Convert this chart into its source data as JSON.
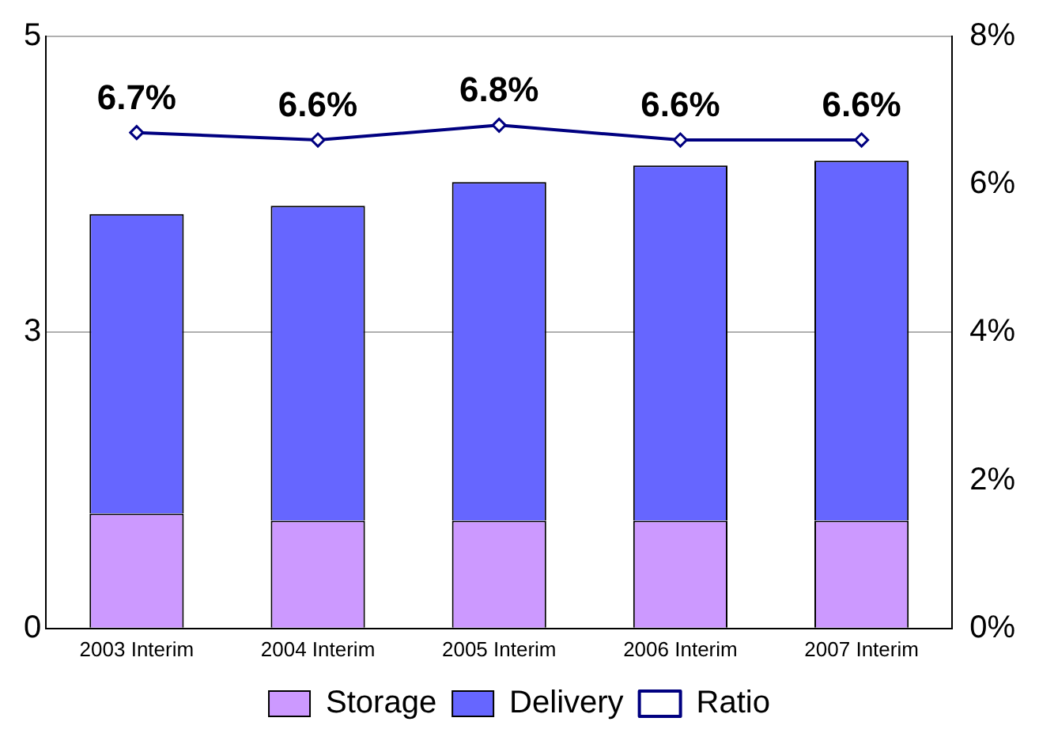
{
  "chart_data": {
    "type": "bar",
    "stacked": true,
    "categories": [
      "2003 Interim",
      "2004 Interim",
      "2005 Interim",
      "2006 Interim",
      "2007 Interim"
    ],
    "series": [
      {
        "name": "Storage",
        "color": "#cc99ff",
        "values": [
          0.97,
          0.91,
          0.91,
          0.91,
          0.91
        ]
      },
      {
        "name": "Delivery",
        "color": "#6666ff",
        "values": [
          2.53,
          2.66,
          2.86,
          3.0,
          3.04
        ]
      },
      {
        "name": "Ratio",
        "type": "line",
        "axis": "y2",
        "color": "#000080",
        "marker": "diamond",
        "values": [
          6.7,
          6.6,
          6.8,
          6.6,
          6.6
        ],
        "value_labels": [
          "6.7%",
          "6.6%",
          "6.8%",
          "6.6%",
          "6.6%"
        ]
      }
    ],
    "ylim": [
      0,
      5
    ],
    "yticks": [
      0,
      {
        "value": 2.5,
        "label": "3"
      },
      5
    ],
    "y2lim": [
      0,
      8
    ],
    "y2ticks": [
      {
        "value": 0,
        "label": "0%"
      },
      {
        "value": 2,
        "label": "2%"
      },
      {
        "value": 4,
        "label": "4%"
      },
      {
        "value": 6,
        "label": "6%"
      },
      {
        "value": 8,
        "label": "8%"
      }
    ],
    "grid": "y",
    "legend": "bottom"
  }
}
